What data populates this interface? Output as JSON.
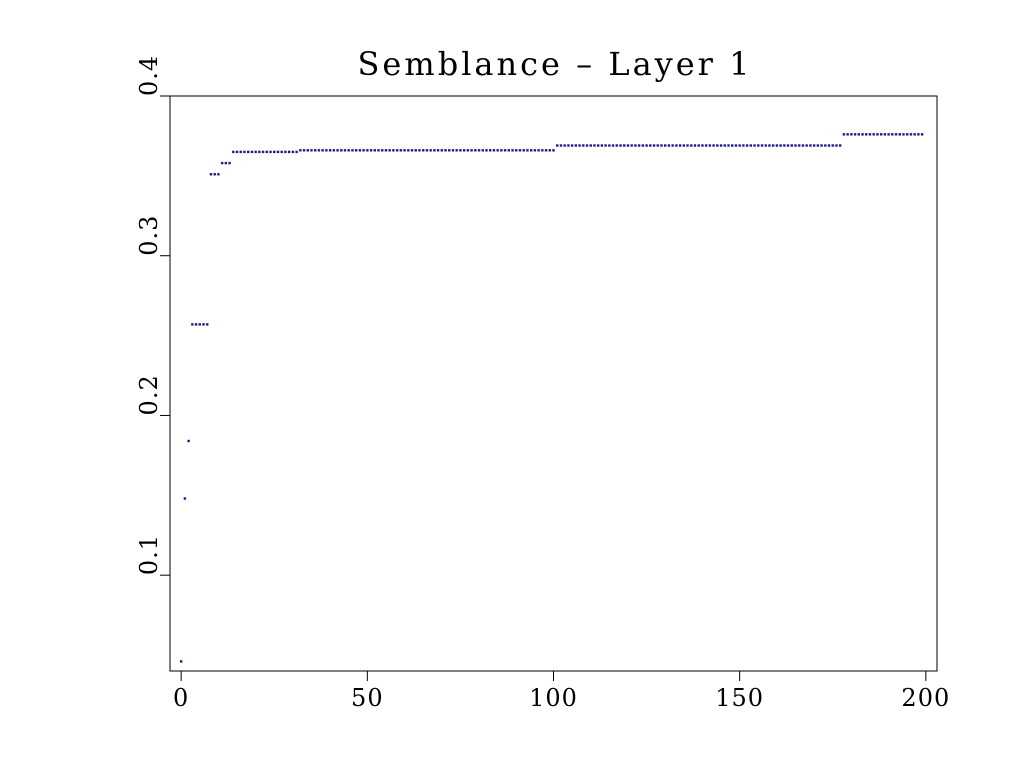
{
  "chart_data": {
    "type": "scatter",
    "title": "Semblance – Layer 1",
    "xlabel": "",
    "ylabel": "",
    "xlim": [
      -3,
      203
    ],
    "ylim": [
      0.04,
      0.4
    ],
    "x_ticks": [
      0,
      50,
      100,
      150,
      200
    ],
    "x_tick_labels": [
      "0",
      "50",
      "100",
      "150",
      "200"
    ],
    "y_ticks": [
      0.1,
      0.2,
      0.3,
      0.4
    ],
    "y_tick_labels": [
      "0.1",
      "0.2",
      "0.3",
      "0.4"
    ],
    "grid": false,
    "legend": "none",
    "marker_color": "#1a1a8c",
    "series": [
      {
        "steps": [
          {
            "x_from": 0,
            "x_to": 0,
            "y": 0.046
          },
          {
            "x_from": 1,
            "x_to": 1,
            "y": 0.148
          },
          {
            "x_from": 2,
            "x_to": 2,
            "y": 0.184
          },
          {
            "x_from": 3,
            "x_to": 7,
            "y": 0.257
          },
          {
            "x_from": 8,
            "x_to": 10,
            "y": 0.351
          },
          {
            "x_from": 11,
            "x_to": 13,
            "y": 0.358
          },
          {
            "x_from": 14,
            "x_to": 31,
            "y": 0.365
          },
          {
            "x_from": 32,
            "x_to": 100,
            "y": 0.366
          },
          {
            "x_from": 101,
            "x_to": 177,
            "y": 0.369
          },
          {
            "x_from": 178,
            "x_to": 199,
            "y": 0.376
          }
        ]
      }
    ]
  }
}
